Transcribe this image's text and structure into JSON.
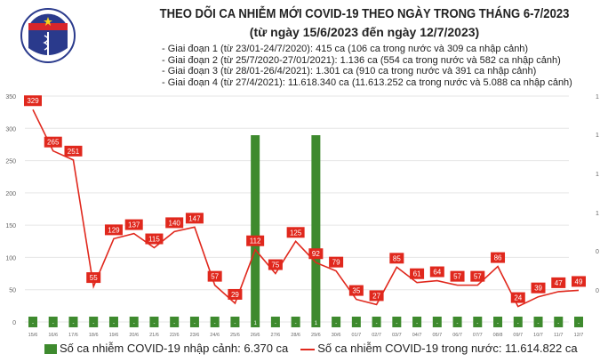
{
  "header": {
    "logo_text": "BỘ Y TẾ / MINISTRY OF HEALTH",
    "title": "THEO DÕI CA NHIỄM MỚI COVID-19 THEO NGÀY TRONG THÁNG 6-7/2023",
    "subtitle": "(từ ngày 15/6/2023 đến ngày 12/7/2023)",
    "notes": [
      "- Giai đoạn 1 (từ 23/01-24/7/2020): 415 ca (106 ca trong nước và 309 ca nhập cảnh)",
      "- Giai đoạn 2 (từ 25/7/2020-27/01/2021): 1.136 ca (554 ca trong nước và 582 ca nhập cảnh)",
      "- Giai đoạn 3 (từ 28/01-26/4/2021): 1.301 ca (910 ca trong nước và 391 ca nhập cảnh)",
      "- Giai đoạn 4 (từ 27/4/2021): 11.618.340 ca (11.613.252 ca trong nước và 5.088 ca nhập cảnh)"
    ]
  },
  "chart_data": {
    "type": "bar+line",
    "categories": [
      "15/6",
      "16/6",
      "17/6",
      "18/6",
      "19/6",
      "20/6",
      "21/6",
      "22/6",
      "23/6",
      "24/6",
      "25/6",
      "26/6",
      "27/6",
      "28/6",
      "29/6",
      "30/6",
      "01/7",
      "02/7",
      "03/7",
      "04/7",
      "05/7",
      "06/7",
      "07/7",
      "08/8",
      "09/7",
      "10/7",
      "11/7",
      "12/7"
    ],
    "series": [
      {
        "name": "Số ca nhiễm COVID-19 nhập cảnh: 6.370 ca",
        "type": "bar",
        "axis": "right",
        "color": "#3e8a2e",
        "values": [
          0,
          0,
          0,
          0,
          0,
          0,
          0,
          0,
          0,
          0,
          0,
          1,
          0,
          0,
          1,
          0,
          0,
          0,
          0,
          0,
          0,
          0,
          0,
          0,
          0,
          0,
          0,
          0
        ]
      },
      {
        "name": "Số ca nhiễm COVID-19 trong nước: 11.614.822 ca",
        "type": "line",
        "axis": "left",
        "color": "#e0281d",
        "values": [
          329,
          265,
          251,
          55,
          129,
          137,
          115,
          140,
          147,
          57,
          29,
          112,
          75,
          125,
          92,
          79,
          35,
          27,
          85,
          61,
          64,
          57,
          57,
          86,
          24,
          39,
          47,
          49
        ]
      }
    ],
    "left_axis": {
      "ticks": [
        0,
        50,
        100,
        150,
        200,
        250,
        300,
        350
      ],
      "ylim": [
        0,
        350
      ]
    },
    "right_axis": {
      "tick_labels": [
        "",
        "0",
        "0",
        "1",
        "1",
        "1",
        "1"
      ]
    },
    "zero_bar_label": "-",
    "grid": true,
    "legend": "bottom"
  }
}
